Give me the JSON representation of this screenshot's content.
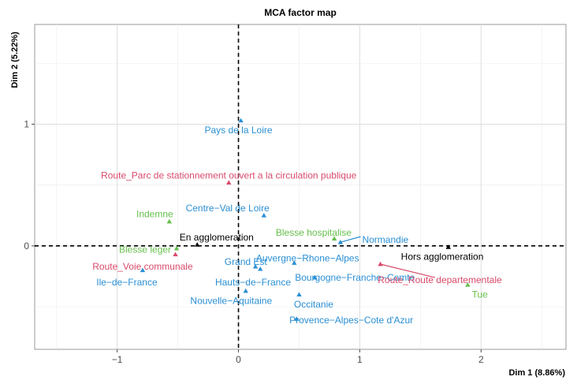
{
  "chart_data": {
    "type": "scatter",
    "title": "MCA factor map",
    "xlabel": "Dim 1 (8.86%)",
    "ylabel": "Dim 2 (5.22%)",
    "xlim": [
      -1.68,
      2.7
    ],
    "ylim": [
      -0.85,
      1.82
    ],
    "xticks": [
      -1,
      0,
      1,
      2
    ],
    "xtick_labels": [
      "−1",
      "0",
      "1",
      "2"
    ],
    "yticks": [
      0,
      1
    ],
    "ytick_labels": [
      "0",
      "1"
    ],
    "grid": true,
    "reference_lines": [
      0,
      0
    ],
    "colors": {
      "region": "#2a8fd4",
      "route": "#d94a6a",
      "gravite": "#65bf4b",
      "agglo": "#000000"
    },
    "points": [
      {
        "label": "Pays de la Loire",
        "group": "region",
        "x": 0.02,
        "y": 1.03,
        "lx": 0.0,
        "ly": 0.95,
        "anchor": "middle"
      },
      {
        "label": "Route_Parc de stationnement ouvert a la circulation publique",
        "group": "route",
        "x": -0.08,
        "y": 0.52,
        "lx": -0.08,
        "ly": 0.58,
        "anchor": "middle"
      },
      {
        "label": "Centre−Val de Loire",
        "group": "region",
        "x": 0.21,
        "y": 0.25,
        "lx": -0.09,
        "ly": 0.31,
        "anchor": "middle"
      },
      {
        "label": "Indemne",
        "group": "gravite",
        "x": -0.57,
        "y": 0.2,
        "lx": -0.69,
        "ly": 0.26,
        "anchor": "middle"
      },
      {
        "label": "Blesse hospitalise",
        "group": "gravite",
        "x": 0.79,
        "y": 0.06,
        "lx": 0.62,
        "ly": 0.11,
        "anchor": "middle"
      },
      {
        "label": "Normandie",
        "group": "region",
        "x": 0.84,
        "y": 0.03,
        "lx": 1.02,
        "ly": 0.05,
        "anchor": "start",
        "connector": true
      },
      {
        "label": "En agglomeration",
        "group": "agglo",
        "x": -0.34,
        "y": 0.01,
        "lx": -0.18,
        "ly": 0.07,
        "anchor": "middle"
      },
      {
        "label": "Hors agglomeration",
        "group": "agglo",
        "x": 1.73,
        "y": -0.01,
        "lx": 1.68,
        "ly": -0.09,
        "anchor": "middle"
      },
      {
        "label": "Blesse leger",
        "group": "gravite",
        "x": -0.51,
        "y": -0.02,
        "lx": -0.77,
        "ly": -0.03,
        "anchor": "middle"
      },
      {
        "label": "Route_Voie communale",
        "group": "route",
        "x": -0.52,
        "y": -0.07,
        "lx": -0.79,
        "ly": -0.17,
        "anchor": "middle"
      },
      {
        "label": "Grand Est",
        "group": "region",
        "x": 0.14,
        "y": -0.17,
        "lx": 0.06,
        "ly": -0.13,
        "anchor": "middle"
      },
      {
        "label": "Auvergne−Rhone−Alpes",
        "group": "region",
        "x": 0.46,
        "y": -0.14,
        "lx": 0.57,
        "ly": -0.1,
        "anchor": "middle"
      },
      {
        "label": "Ile−de−France",
        "group": "region",
        "x": -0.79,
        "y": -0.2,
        "lx": -0.92,
        "ly": -0.3,
        "anchor": "middle"
      },
      {
        "label": "Hauts−de−France",
        "group": "region",
        "x": 0.18,
        "y": -0.19,
        "lx": 0.12,
        "ly": -0.3,
        "anchor": "middle"
      },
      {
        "label": "Bourgogne−Franche−Comte",
        "group": "region",
        "x": 0.63,
        "y": -0.26,
        "lx": 0.96,
        "ly": -0.26,
        "anchor": "middle"
      },
      {
        "label": "Route_Route departementale",
        "group": "route",
        "x": 1.17,
        "y": -0.15,
        "lx": 1.66,
        "ly": -0.28,
        "anchor": "middle",
        "connector": true,
        "connector_end": [
          1.62,
          -0.26
        ]
      },
      {
        "label": "Tue",
        "group": "gravite",
        "x": 1.89,
        "y": -0.32,
        "lx": 1.99,
        "ly": -0.4,
        "anchor": "middle"
      },
      {
        "label": "Nouvelle−Aquitaine",
        "group": "region",
        "x": 0.06,
        "y": -0.37,
        "lx": -0.06,
        "ly": -0.45,
        "anchor": "middle"
      },
      {
        "label": "Occitanie",
        "group": "region",
        "x": 0.5,
        "y": -0.4,
        "lx": 0.62,
        "ly": -0.48,
        "anchor": "middle"
      },
      {
        "label": "Provence−Alpes−Cote d'Azur",
        "group": "region",
        "x": 0.48,
        "y": -0.6,
        "lx": 0.93,
        "ly": -0.61,
        "anchor": "middle"
      }
    ]
  }
}
